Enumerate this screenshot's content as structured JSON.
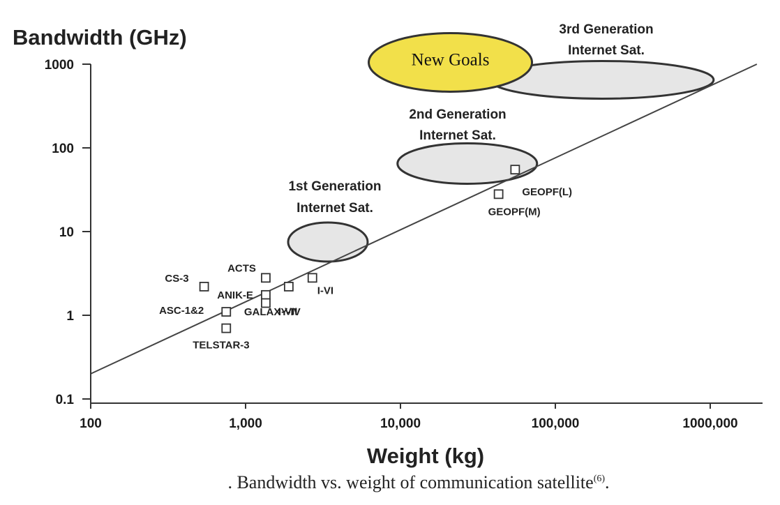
{
  "chart_data": {
    "type": "scatter",
    "title": "",
    "ylabel": "Bandwidth (GHz)",
    "xlabel": "Weight (kg)",
    "x_scale": "log",
    "y_scale": "log",
    "xlim": [
      100,
      2000000
    ],
    "ylim": [
      0.1,
      1300
    ],
    "x_ticks": [
      100,
      1000,
      10000,
      100000,
      1000000
    ],
    "x_tick_labels": [
      "100",
      "1,000",
      "10,000",
      "100,000",
      "1000,000"
    ],
    "y_ticks": [
      0.1,
      1,
      10,
      100,
      1000
    ],
    "y_tick_labels": [
      "0.1",
      "1",
      "10",
      "100",
      "1000"
    ],
    "grid": false,
    "points": [
      {
        "label": "CS-3",
        "x": 540,
        "y": 2.2
      },
      {
        "label": "ANIK-E",
        "x": 1350,
        "y": 1.75
      },
      {
        "label": "ACTS",
        "x": 1350,
        "y": 2.8
      },
      {
        "label": "I-VII",
        "x": 1350,
        "y": 1.4
      },
      {
        "label": "GALAXY-IV",
        "x": 1900,
        "y": 2.2
      },
      {
        "label": "I-VI",
        "x": 2700,
        "y": 2.8
      },
      {
        "label": "ASC-1&2",
        "x": 750,
        "y": 1.1
      },
      {
        "label": "TELSTAR-3",
        "x": 750,
        "y": 0.7
      },
      {
        "label": "GEOPF(L)",
        "x": 55000,
        "y": 55
      },
      {
        "label": "GEOPF(M)",
        "x": 43000,
        "y": 28
      }
    ],
    "trend_line": {
      "x": [
        100,
        2000000
      ],
      "y": [
        0.2,
        1000
      ]
    },
    "regions": [
      {
        "label": "1st Generation Internet Sat.",
        "x": 3400,
        "y": 7.5
      },
      {
        "label": "2nd Generation Internet Sat.",
        "x": 27000,
        "y": 65
      },
      {
        "label": "3rd Generation Internet Sat.",
        "x": 200000,
        "y": 650
      },
      {
        "label": "New Goals",
        "x": 21000,
        "y": 1050
      }
    ],
    "caption": ". Bandwidth vs. weight of communication satellite",
    "caption_ref": "(6)",
    "caption_end": "."
  },
  "colors": {
    "axis": "#333333",
    "trend": "#444444",
    "region_fill": "#e6e6e6",
    "goal_fill": "#f2e04a"
  }
}
